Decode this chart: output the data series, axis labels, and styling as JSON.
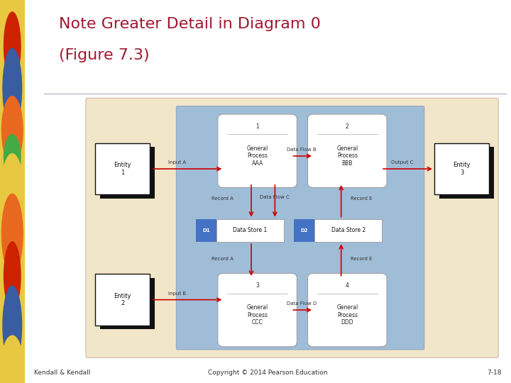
{
  "title_line1": "Note Greater Detail in Diagram 0",
  "title_line2": "(Figure 7.3)",
  "title_color": "#A01830",
  "bg_color": "#FFFFFF",
  "footer_left": "Kendall & Kendall",
  "footer_center": "Copyright © 2014 Pearson Education",
  "footer_right": "7-18",
  "diagram": {
    "outer_bg": "#F2E6C8",
    "inner_bg": "#A0BDD8",
    "datastore_tag_bg": "#4472C4",
    "arrow_color": "#CC0000",
    "entity_shadow": "#222222",
    "process_border": "#999999",
    "ds_border": "#999999"
  }
}
